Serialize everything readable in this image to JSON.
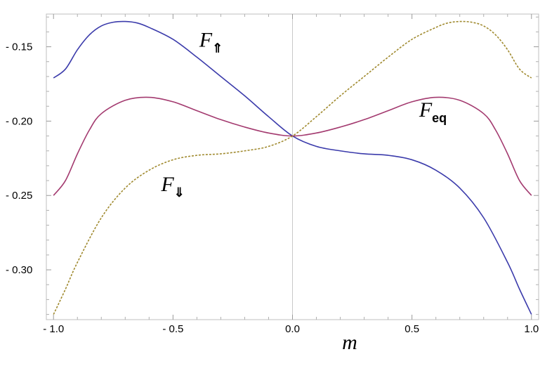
{
  "chart_data": {
    "type": "line",
    "title": "",
    "xlabel": "m",
    "ylabel": "",
    "xlim": [
      -1.03,
      1.03
    ],
    "ylim": [
      -0.3335,
      -0.128
    ],
    "grid": false,
    "x_ticks": [
      {
        "value": -1.0,
        "label": "- 1.0"
      },
      {
        "value": -0.5,
        "label": "- 0.5"
      },
      {
        "value": 0.0,
        "label": "0.0"
      },
      {
        "value": 0.5,
        "label": "0.5"
      },
      {
        "value": 1.0,
        "label": "1.0"
      }
    ],
    "y_ticks": [
      {
        "value": -0.15,
        "label": "- 0.15"
      },
      {
        "value": -0.2,
        "label": "- 0.20"
      },
      {
        "value": -0.25,
        "label": "- 0.25"
      },
      {
        "value": -0.3,
        "label": "- 0.30"
      }
    ],
    "series": [
      {
        "name": "F⇑",
        "label_main": "F",
        "label_sub": "⇑",
        "color": "#3b3bab",
        "style": "solid",
        "points": [
          [
            -1.0,
            -0.171
          ],
          [
            -0.95,
            -0.165
          ],
          [
            -0.9,
            -0.152
          ],
          [
            -0.85,
            -0.142
          ],
          [
            -0.8,
            -0.136
          ],
          [
            -0.75,
            -0.1335
          ],
          [
            -0.7,
            -0.133
          ],
          [
            -0.65,
            -0.134
          ],
          [
            -0.6,
            -0.137
          ],
          [
            -0.5,
            -0.145
          ],
          [
            -0.4,
            -0.157
          ],
          [
            -0.3,
            -0.17
          ],
          [
            -0.2,
            -0.183
          ],
          [
            -0.1,
            -0.197
          ],
          [
            0.0,
            -0.21
          ],
          [
            0.1,
            -0.217
          ],
          [
            0.2,
            -0.22
          ],
          [
            0.3,
            -0.222
          ],
          [
            0.4,
            -0.223
          ],
          [
            0.5,
            -0.226
          ],
          [
            0.6,
            -0.233
          ],
          [
            0.7,
            -0.245
          ],
          [
            0.8,
            -0.265
          ],
          [
            0.9,
            -0.295
          ],
          [
            0.95,
            -0.313
          ],
          [
            1.0,
            -0.33
          ]
        ]
      },
      {
        "name": "F_eq",
        "label_main": "F",
        "label_sub": "eq",
        "color": "#a33a6f",
        "style": "solid",
        "points": [
          [
            -1.0,
            -0.25
          ],
          [
            -0.95,
            -0.24
          ],
          [
            -0.9,
            -0.222
          ],
          [
            -0.85,
            -0.206
          ],
          [
            -0.8,
            -0.195
          ],
          [
            -0.7,
            -0.186
          ],
          [
            -0.6,
            -0.184
          ],
          [
            -0.5,
            -0.187
          ],
          [
            -0.4,
            -0.193
          ],
          [
            -0.3,
            -0.199
          ],
          [
            -0.2,
            -0.204
          ],
          [
            -0.1,
            -0.208
          ],
          [
            0.0,
            -0.21
          ],
          [
            0.1,
            -0.208
          ],
          [
            0.2,
            -0.204
          ],
          [
            0.3,
            -0.199
          ],
          [
            0.4,
            -0.193
          ],
          [
            0.5,
            -0.187
          ],
          [
            0.6,
            -0.184
          ],
          [
            0.7,
            -0.186
          ],
          [
            0.8,
            -0.195
          ],
          [
            0.85,
            -0.206
          ],
          [
            0.9,
            -0.222
          ],
          [
            0.95,
            -0.24
          ],
          [
            1.0,
            -0.25
          ]
        ]
      },
      {
        "name": "F⇓",
        "label_main": "F",
        "label_sub": "⇓",
        "color": "#a08a2f",
        "style": "dashed",
        "points": [
          [
            -1.0,
            -0.33
          ],
          [
            -0.95,
            -0.313
          ],
          [
            -0.9,
            -0.295
          ],
          [
            -0.8,
            -0.265
          ],
          [
            -0.7,
            -0.245
          ],
          [
            -0.6,
            -0.233
          ],
          [
            -0.5,
            -0.226
          ],
          [
            -0.4,
            -0.223
          ],
          [
            -0.3,
            -0.222
          ],
          [
            -0.2,
            -0.22
          ],
          [
            -0.1,
            -0.217
          ],
          [
            0.0,
            -0.21
          ],
          [
            0.1,
            -0.197
          ],
          [
            0.2,
            -0.183
          ],
          [
            0.3,
            -0.17
          ],
          [
            0.4,
            -0.157
          ],
          [
            0.5,
            -0.145
          ],
          [
            0.6,
            -0.137
          ],
          [
            0.65,
            -0.134
          ],
          [
            0.7,
            -0.133
          ],
          [
            0.75,
            -0.1335
          ],
          [
            0.8,
            -0.136
          ],
          [
            0.85,
            -0.142
          ],
          [
            0.9,
            -0.152
          ],
          [
            0.95,
            -0.165
          ],
          [
            1.0,
            -0.171
          ]
        ]
      }
    ],
    "annotations": [
      {
        "series": "F⇑",
        "x": -0.39,
        "y": -0.15
      },
      {
        "series": "F_eq",
        "x": 0.53,
        "y": -0.197
      },
      {
        "series": "F⇓",
        "x": -0.55,
        "y": -0.247
      }
    ]
  }
}
